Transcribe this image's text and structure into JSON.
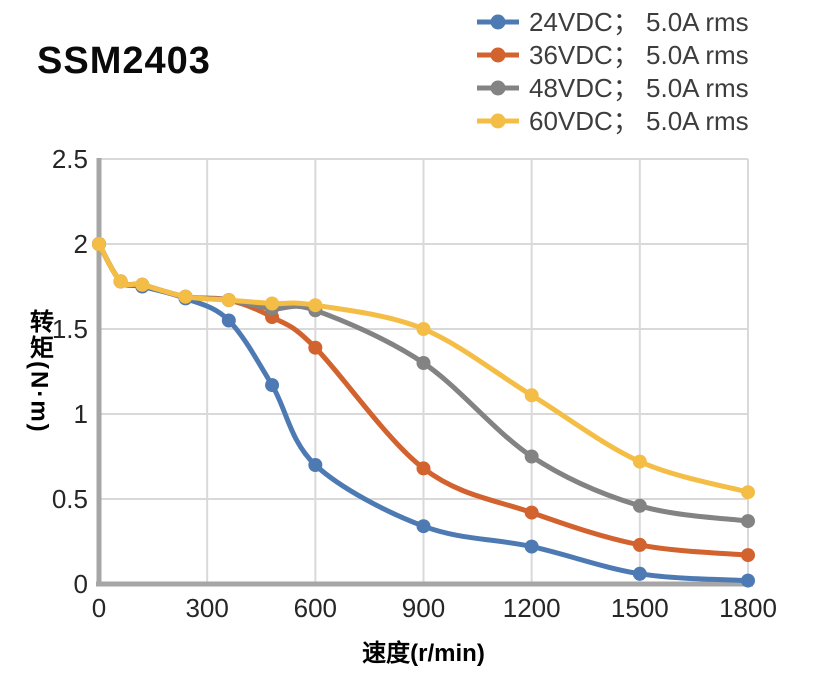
{
  "title": "SSM2403",
  "chart_data": {
    "type": "line",
    "title": "SSM2403",
    "xlabel": "速度(r/min)",
    "ylabel": "转矩(N·m)",
    "x": [
      0,
      60,
      120,
      240,
      360,
      480,
      600,
      900,
      1200,
      1500,
      1800
    ],
    "series": [
      {
        "name": "24VDC； 5.0A rms",
        "color": "#4e7ab4",
        "values": [
          2.0,
          1.78,
          1.75,
          1.68,
          1.55,
          1.17,
          0.7,
          0.34,
          0.22,
          0.06,
          0.02
        ]
      },
      {
        "name": "36VDC； 5.0A rms",
        "color": "#d2622e",
        "values": [
          2.0,
          1.78,
          1.76,
          1.69,
          1.67,
          1.57,
          1.39,
          0.68,
          0.42,
          0.23,
          0.17
        ]
      },
      {
        "name": "48VDC； 5.0A rms",
        "color": "#838383",
        "values": [
          2.0,
          1.78,
          1.76,
          1.69,
          1.67,
          1.62,
          1.61,
          1.3,
          0.75,
          0.46,
          0.37
        ]
      },
      {
        "name": "60VDC； 5.0A rms",
        "color": "#f4bd45",
        "values": [
          2.0,
          1.78,
          1.76,
          1.69,
          1.67,
          1.65,
          1.64,
          1.5,
          1.11,
          0.72,
          0.54
        ]
      }
    ],
    "xlim": [
      0,
      1800
    ],
    "ylim": [
      0,
      2.5
    ],
    "x_ticks": [
      0,
      300,
      600,
      900,
      1200,
      1500,
      1800
    ],
    "y_ticks": [
      0,
      0.5,
      1,
      1.5,
      2,
      2.5
    ],
    "y_tick_labels": [
      "0",
      "0.5",
      "1",
      "1.5",
      "2",
      "2.5"
    ],
    "grid": true,
    "legend_position": "top-right",
    "line_smoothing": true
  },
  "styles": {
    "grid_color": "#d9d9d9",
    "axis_color": "#a6a6a6",
    "tick_label_color": "#262626",
    "legend_text_color": "#3d3d3d",
    "title_color": "#0a0a0a"
  }
}
